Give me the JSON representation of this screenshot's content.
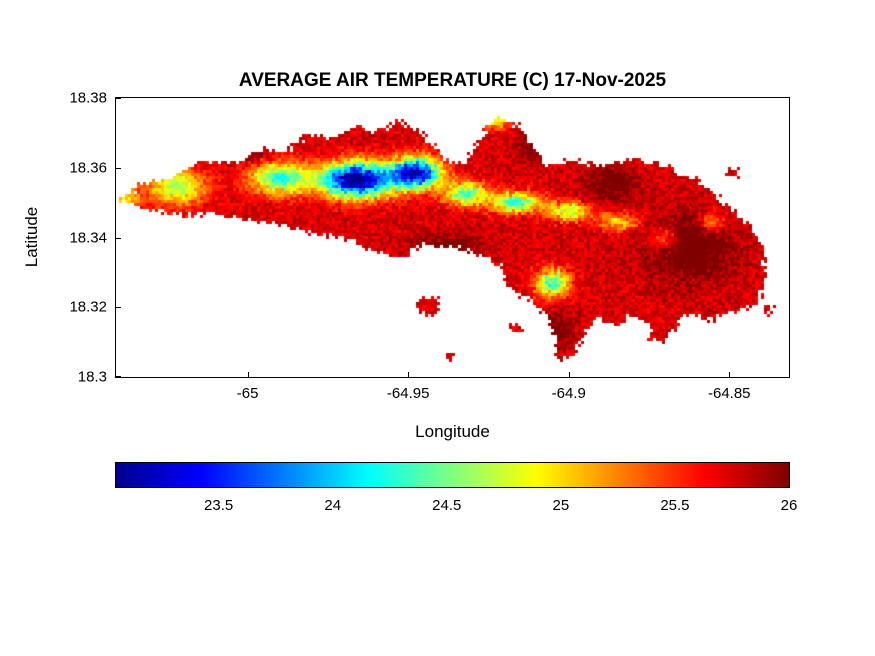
{
  "chart_data": {
    "type": "heatmap",
    "title": "AVERAGE AIR TEMPERATURE (C) 17-Nov-2025",
    "xlabel": "Longitude",
    "ylabel": "Latitude",
    "units": "C",
    "xlim": [
      -65.041,
      -64.8314
    ],
    "ylim": [
      18.3,
      18.38
    ],
    "xticks": [
      -65,
      -64.95,
      -64.9,
      -64.85
    ],
    "xtick_labels": [
      "-65",
      "-64.95",
      "-64.9",
      "-64.85"
    ],
    "yticks": [
      18.3,
      18.32,
      18.34,
      18.36,
      18.38
    ],
    "ytick_labels": [
      "18.3",
      "18.32",
      "18.34",
      "18.36",
      "18.38"
    ],
    "grid": false,
    "background_color": "#ffffff",
    "ocean_color": "#ffffff",
    "colorbar": {
      "orientation": "horizontal",
      "min": 23.05,
      "max": 26,
      "ticks": [
        23.5,
        24,
        24.5,
        25,
        25.5,
        26
      ],
      "tick_labels": [
        "23.5",
        "24",
        "24.5",
        "25",
        "25.5",
        "26"
      ]
    },
    "colormap": {
      "name": "jet",
      "stops": [
        [
          0,
          [
            0,
            0,
            143
          ]
        ],
        [
          0.125,
          [
            0,
            0,
            255
          ]
        ],
        [
          0.375,
          [
            0,
            255,
            255
          ]
        ],
        [
          0.625,
          [
            255,
            255,
            0
          ]
        ],
        [
          0.875,
          [
            255,
            0,
            0
          ]
        ],
        [
          1,
          [
            128,
            0,
            0
          ]
        ]
      ]
    },
    "base_temperature": 25.75,
    "noise_amplitude": 0.15,
    "island_polygon": [
      [
        -65.04,
        18.35
      ],
      [
        -65.033,
        18.3555
      ],
      [
        -65.024,
        18.357
      ],
      [
        -65.014,
        18.3615
      ],
      [
        -65.002,
        18.3618
      ],
      [
        -64.996,
        18.3655
      ],
      [
        -64.988,
        18.3645
      ],
      [
        -64.982,
        18.3695
      ],
      [
        -64.9745,
        18.3685
      ],
      [
        -64.9665,
        18.3715
      ],
      [
        -64.9585,
        18.3705
      ],
      [
        -64.9525,
        18.3735
      ],
      [
        -64.9465,
        18.3705
      ],
      [
        -64.9415,
        18.3655
      ],
      [
        -64.9375,
        18.3615
      ],
      [
        -64.9325,
        18.3618
      ],
      [
        -64.9285,
        18.3665
      ],
      [
        -64.9245,
        18.3735
      ],
      [
        -64.9195,
        18.3745
      ],
      [
        -64.9145,
        18.3715
      ],
      [
        -64.9115,
        18.3655
      ],
      [
        -64.9065,
        18.3605
      ],
      [
        -64.8985,
        18.3625
      ],
      [
        -64.8905,
        18.3605
      ],
      [
        -64.8795,
        18.3625
      ],
      [
        -64.8695,
        18.3605
      ],
      [
        -64.8595,
        18.356
      ],
      [
        -64.8515,
        18.3495
      ],
      [
        -64.8445,
        18.3445
      ],
      [
        -64.8395,
        18.3375
      ],
      [
        -64.8385,
        18.3295
      ],
      [
        -64.8405,
        18.3215
      ],
      [
        -64.8475,
        18.3185
      ],
      [
        -64.8555,
        18.3165
      ],
      [
        -64.8645,
        18.3175
      ],
      [
        -64.8695,
        18.3105
      ],
      [
        -64.8735,
        18.3095
      ],
      [
        -64.8755,
        18.3155
      ],
      [
        -64.8805,
        18.3175
      ],
      [
        -64.8855,
        18.3145
      ],
      [
        -64.8905,
        18.3175
      ],
      [
        -64.8955,
        18.3125
      ],
      [
        -64.8985,
        18.3055
      ],
      [
        -64.9035,
        18.3045
      ],
      [
        -64.9045,
        18.3125
      ],
      [
        -64.9075,
        18.3185
      ],
      [
        -64.9125,
        18.3225
      ],
      [
        -64.9185,
        18.3255
      ],
      [
        -64.9205,
        18.3305
      ],
      [
        -64.9255,
        18.3345
      ],
      [
        -64.9355,
        18.337
      ],
      [
        -64.9455,
        18.338
      ],
      [
        -64.9525,
        18.334
      ],
      [
        -64.9605,
        18.336
      ],
      [
        -64.9705,
        18.34
      ],
      [
        -64.9805,
        18.341
      ],
      [
        -64.9905,
        18.344
      ],
      [
        -65.0005,
        18.345
      ],
      [
        -65.0105,
        18.347
      ],
      [
        -65.0205,
        18.346
      ],
      [
        -65.0305,
        18.348
      ]
    ],
    "islets": [
      [
        -64.944,
        18.3205,
        0.0035,
        0.0025
      ],
      [
        -64.9365,
        18.3065,
        0.0016,
        0.0012
      ],
      [
        -64.9165,
        18.3135,
        0.0018,
        0.0014
      ],
      [
        -64.849,
        18.3585,
        0.0022,
        0.0012
      ],
      [
        -64.838,
        18.319,
        0.0018,
        0.0012
      ]
    ],
    "temperature_features": [
      {
        "lon": -64.966,
        "lat": 18.3565,
        "rx": 0.011,
        "ry": 0.0048,
        "amp": -2.9
      },
      {
        "lon": -64.9475,
        "lat": 18.3585,
        "rx": 0.0075,
        "ry": 0.0042,
        "amp": -2.6
      },
      {
        "lon": -64.99,
        "lat": 18.357,
        "rx": 0.009,
        "ry": 0.0045,
        "amp": -1.5
      },
      {
        "lon": -65.022,
        "lat": 18.3545,
        "rx": 0.009,
        "ry": 0.005,
        "amp": -1.1
      },
      {
        "lon": -65.038,
        "lat": 18.3515,
        "rx": 0.004,
        "ry": 0.003,
        "amp": -0.8
      },
      {
        "lon": -64.932,
        "lat": 18.3525,
        "rx": 0.0065,
        "ry": 0.0032,
        "amp": -1.4
      },
      {
        "lon": -64.9165,
        "lat": 18.35,
        "rx": 0.0075,
        "ry": 0.0028,
        "amp": -1.5
      },
      {
        "lon": -64.9,
        "lat": 18.3475,
        "rx": 0.0065,
        "ry": 0.0026,
        "amp": -1.1
      },
      {
        "lon": -64.8845,
        "lat": 18.3445,
        "rx": 0.006,
        "ry": 0.0024,
        "amp": -0.75
      },
      {
        "lon": -64.905,
        "lat": 18.327,
        "rx": 0.005,
        "ry": 0.0038,
        "amp": -1.5
      },
      {
        "lon": -64.87,
        "lat": 18.3395,
        "rx": 0.0045,
        "ry": 0.003,
        "amp": -0.55
      },
      {
        "lon": -64.8555,
        "lat": 18.3445,
        "rx": 0.0038,
        "ry": 0.0026,
        "amp": -0.6
      },
      {
        "lon": -64.9225,
        "lat": 18.3735,
        "rx": 0.0035,
        "ry": 0.0022,
        "amp": -0.9
      },
      {
        "lon": -64.862,
        "lat": 18.337,
        "rx": 0.013,
        "ry": 0.009,
        "amp": 0.45
      },
      {
        "lon": -64.8865,
        "lat": 18.3555,
        "rx": 0.008,
        "ry": 0.005,
        "amp": 0.35
      },
      {
        "lon": -64.938,
        "lat": 18.3375,
        "rx": 0.011,
        "ry": 0.003,
        "amp": 0.35
      },
      {
        "lon": -64.9035,
        "lat": 18.3135,
        "rx": 0.005,
        "ry": 0.005,
        "amp": 0.3
      },
      {
        "lon": -64.9995,
        "lat": 18.3635,
        "rx": 0.007,
        "ry": 0.0025,
        "amp": 0.3
      },
      {
        "lon": -64.912,
        "lat": 18.366,
        "rx": 0.004,
        "ry": 0.004,
        "amp": 0.3
      }
    ]
  }
}
